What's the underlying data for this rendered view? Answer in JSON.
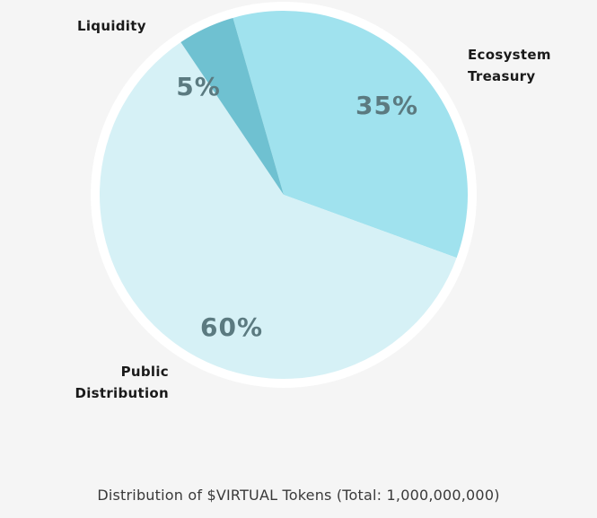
{
  "chart_data": {
    "type": "pie",
    "title": "Distribution of $VIRTUAL Tokens (Total: 1,000,000,000)",
    "slices": [
      {
        "name": "Ecosystem Treasury",
        "line1": "Ecosystem",
        "line2": "Treasury",
        "value": 35,
        "label": "35%",
        "color": "#a0e2ee"
      },
      {
        "name": "Public Distribution",
        "line1": "Public",
        "line2": "Distribution",
        "value": 60,
        "label": "60%",
        "color": "#d6f1f6"
      },
      {
        "name": "Liquidity",
        "line1": "Liquidity",
        "line2": "",
        "value": 5,
        "label": "5%",
        "color": "#6fc1d1"
      }
    ],
    "start_direction": "top-left, clockwise from Ecosystem Treasury"
  }
}
